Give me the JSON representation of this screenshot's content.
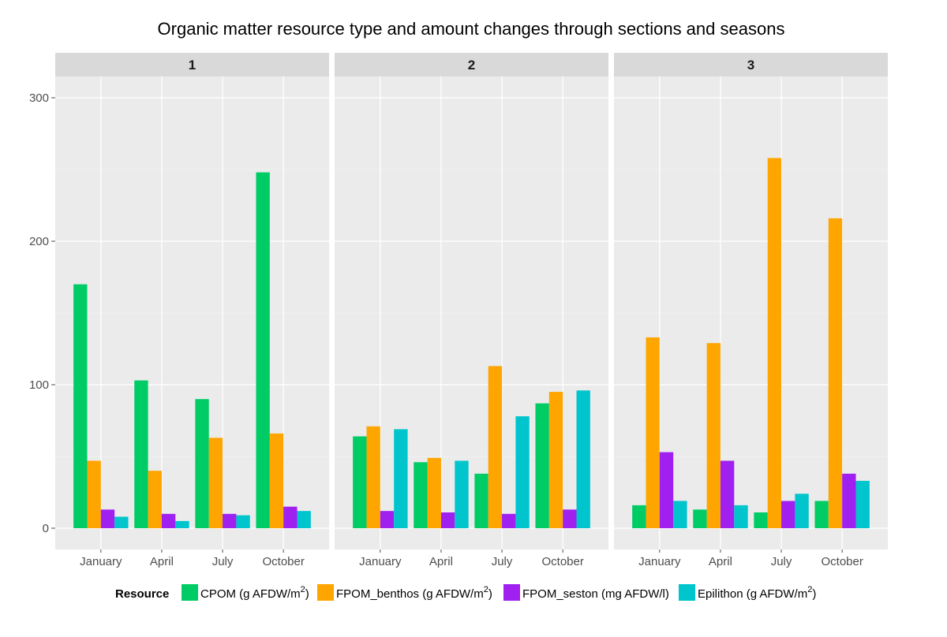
{
  "chart_data": {
    "type": "bar",
    "title": "Organic matter resource type and amount changes through sections and seasons",
    "xlabel": "",
    "ylabel": "",
    "ylim": [
      0,
      300
    ],
    "yticks": [
      "0",
      "100",
      "200",
      "300"
    ],
    "categories": [
      "January",
      "April",
      "July",
      "October"
    ],
    "legend": {
      "title": "Resource",
      "placement": "bottom",
      "entries": [
        {
          "name": "CPOM",
          "unit_prefix": "(g AFDW/m",
          "sup": "2",
          "unit_suffix": ")",
          "color": "#00CC66"
        },
        {
          "name": "FPOM_benthos",
          "unit_prefix": "(g AFDW/m",
          "sup": "2",
          "unit_suffix": ")",
          "color": "#FFA500"
        },
        {
          "name": "FPOM_seston",
          "unit_prefix": "(mg AFDW/l)",
          "sup": "",
          "unit_suffix": "",
          "color": "#A020F0"
        },
        {
          "name": "Epilithon",
          "unit_prefix": "(g AFDW/m",
          "sup": "2",
          "unit_suffix": ")",
          "color": "#00C5CD"
        }
      ]
    },
    "panels": [
      {
        "label": "1",
        "series": [
          {
            "values": [
              170,
              103,
              90,
              248
            ]
          },
          {
            "values": [
              47,
              40,
              63,
              66
            ]
          },
          {
            "values": [
              13,
              10,
              10,
              15
            ]
          },
          {
            "values": [
              8,
              5,
              9,
              12
            ]
          }
        ]
      },
      {
        "label": "2",
        "series": [
          {
            "values": [
              64,
              46,
              38,
              87
            ]
          },
          {
            "values": [
              71,
              49,
              113,
              95
            ]
          },
          {
            "values": [
              12,
              11,
              10,
              13
            ]
          },
          {
            "values": [
              69,
              47,
              78,
              96
            ]
          }
        ]
      },
      {
        "label": "3",
        "series": [
          {
            "values": [
              16,
              13,
              11,
              19
            ]
          },
          {
            "values": [
              133,
              129,
              258,
              216
            ]
          },
          {
            "values": [
              53,
              47,
              19,
              38
            ]
          },
          {
            "values": [
              19,
              16,
              24,
              33
            ]
          }
        ]
      }
    ]
  }
}
